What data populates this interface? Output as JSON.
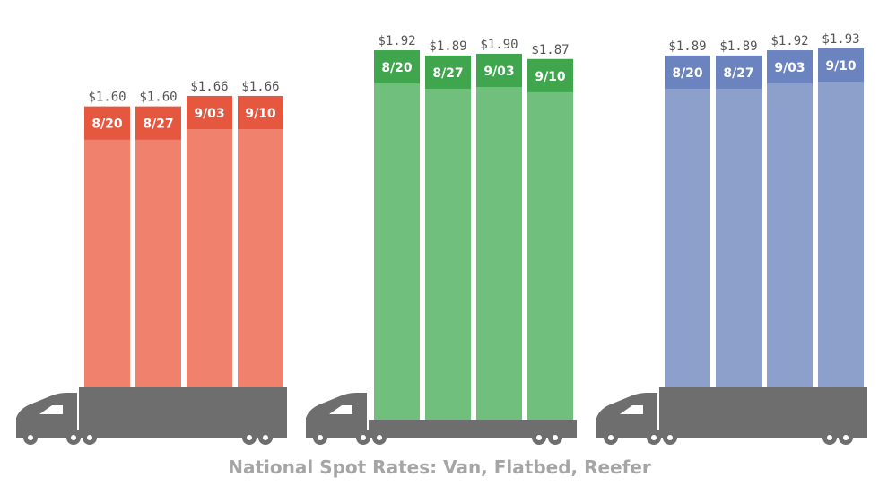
{
  "chart_data": {
    "type": "bar",
    "title": "National Spot Rates: Van, Flatbed, Reefer",
    "categories": [
      "8/20",
      "8/27",
      "9/03",
      "9/10"
    ],
    "ylim": [
      0,
      2.0
    ],
    "series": [
      {
        "key": "van",
        "color": "#f0826d",
        "header_color": "#e6573f",
        "value_labels": [
          "$1.60",
          "$1.60",
          "$1.66",
          "$1.66"
        ],
        "values": [
          1.6,
          1.6,
          1.66,
          1.66
        ]
      },
      {
        "key": "flatbed",
        "color": "#71bf7d",
        "header_color": "#3fa64d",
        "value_labels": [
          "$1.92",
          "$1.89",
          "$1.90",
          "$1.87"
        ],
        "values": [
          1.92,
          1.89,
          1.9,
          1.87
        ]
      },
      {
        "key": "reefer",
        "color": "#8da0cb",
        "header_color": "#6b84c0",
        "value_labels": [
          "$1.89",
          "$1.89",
          "$1.92",
          "$1.93"
        ],
        "values": [
          1.89,
          1.89,
          1.92,
          1.93
        ]
      }
    ],
    "truck_color": "#6e6e6e"
  }
}
